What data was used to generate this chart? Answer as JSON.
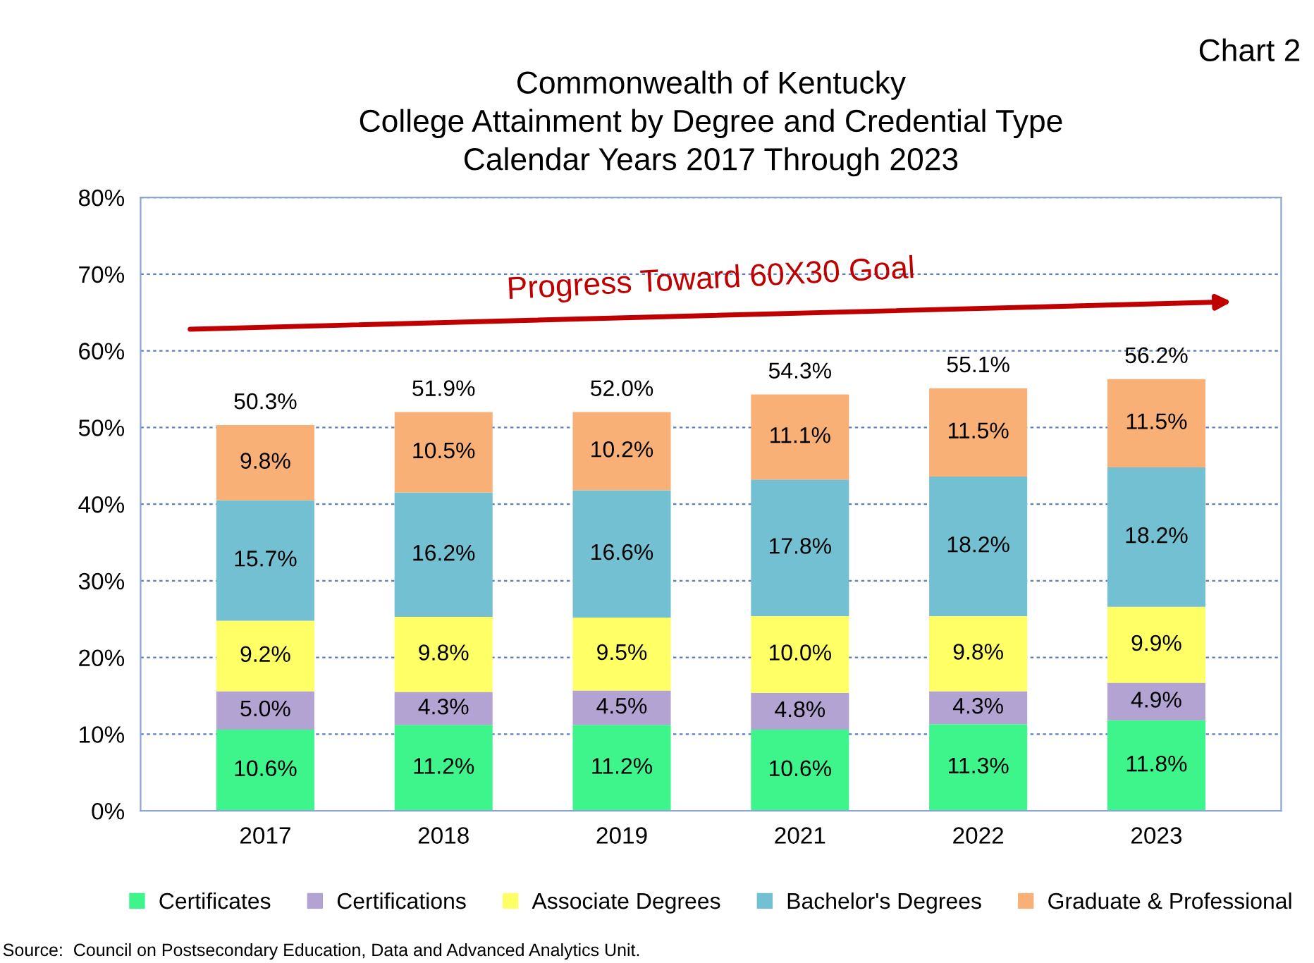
{
  "chart_data": {
    "type": "bar",
    "stacked": true,
    "title": "Commonwealth of Kentucky\nCollege Attainment by Degree and Credential Type\nCalendar Years 2017 Through 2023",
    "categories": [
      "2017",
      "2018",
      "2019",
      "2021",
      "2022",
      "2023"
    ],
    "series": [
      {
        "name": "Certificates",
        "color": "#3df58b",
        "values": [
          10.6,
          11.2,
          11.2,
          10.6,
          11.3,
          11.8
        ],
        "value_labels": [
          "10.6%",
          "11.2%",
          "11.2%",
          "10.6%",
          "11.3%",
          "11.8%"
        ]
      },
      {
        "name": "Certifications",
        "color": "#b3a3d3",
        "values": [
          5.0,
          4.3,
          4.5,
          4.8,
          4.3,
          4.9
        ],
        "value_labels": [
          "5.0%",
          "4.3%",
          "4.5%",
          "4.8%",
          "4.3%",
          "4.9%"
        ]
      },
      {
        "name": "Associate Degrees",
        "color": "#ffff66",
        "values": [
          9.2,
          9.8,
          9.5,
          10.0,
          9.8,
          9.9
        ],
        "value_labels": [
          "9.2%",
          "9.8%",
          "9.5%",
          "10.0%",
          "9.8%",
          "9.9%"
        ]
      },
      {
        "name": "Bachelor's Degrees",
        "color": "#72c0d2",
        "values": [
          15.7,
          16.2,
          16.6,
          17.8,
          18.2,
          18.2
        ],
        "value_labels": [
          "15.7%",
          "16.2%",
          "16.6%",
          "17.8%",
          "18.2%",
          "18.2%"
        ]
      },
      {
        "name": "Graduate & Professional",
        "color": "#f9b077",
        "values": [
          9.8,
          10.5,
          10.2,
          11.1,
          11.5,
          11.5
        ],
        "value_labels": [
          "9.8%",
          "10.5%",
          "10.2%",
          "11.1%",
          "11.5%",
          "11.5%"
        ]
      }
    ],
    "totals": [
      "50.3%",
      "51.9%",
      "52.0%",
      "54.3%",
      "55.1%",
      "56.2%"
    ],
    "ylim": [
      0,
      80
    ],
    "yticks": [
      {
        "value": 0,
        "label": "0%"
      },
      {
        "value": 10,
        "label": "10%"
      },
      {
        "value": 20,
        "label": "20%"
      },
      {
        "value": 30,
        "label": "30%"
      },
      {
        "value": 40,
        "label": "40%"
      },
      {
        "value": 50,
        "label": "50%"
      },
      {
        "value": 60,
        "label": "60%"
      },
      {
        "value": 70,
        "label": "70%"
      },
      {
        "value": 80,
        "label": "80%"
      }
    ],
    "grid": "y",
    "legend": "bottom",
    "annotations": [
      "Chart 2",
      "Progress Toward 60X30 Goal",
      "Source:  Council on Postsecondary Education, Data and Advanced Analytics Unit."
    ]
  }
}
